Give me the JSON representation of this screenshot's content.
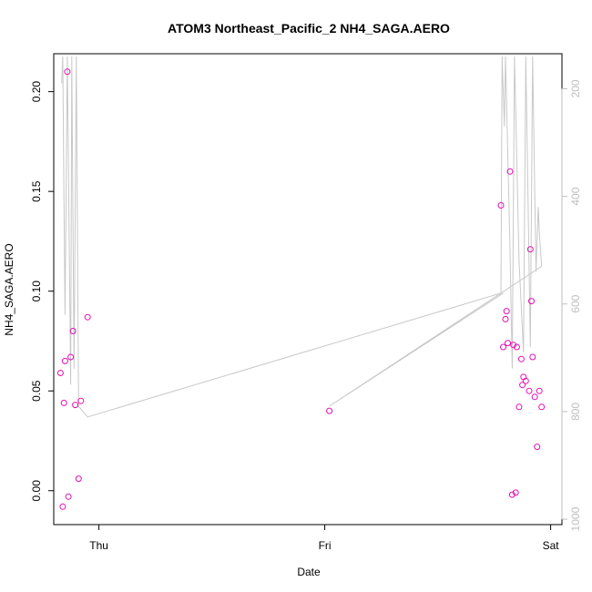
{
  "chart_data": {
    "type": "scatter",
    "title": "ATOM3 Northeast_Pacific_2 NH4_SAGA.AERO",
    "xlabel": "Date",
    "ylabel": "NH4_SAGA.AERO",
    "x_ticks": [
      "Thu",
      "Fri",
      "Sat"
    ],
    "y_ticks": [
      "0.00",
      "0.05",
      "0.10",
      "0.15",
      "0.20"
    ],
    "y2_ticks": [
      "200",
      "400",
      "600",
      "800",
      "1000"
    ],
    "xlim": [
      -0.2,
      2.05
    ],
    "ylim": [
      -0.017,
      0.219
    ],
    "y2lim": [
      1010,
      135
    ],
    "grid": false,
    "legend": "none",
    "colors": {
      "points": "#e60fb4",
      "pressure_line": "#c8c8c8",
      "axis": "#000000",
      "secondary_axis": "#bebebe"
    },
    "series": [
      {
        "values": [
          {
            "x": -0.17,
            "y": 0.059
          },
          {
            "x": -0.16,
            "y": -0.008
          },
          {
            "x": -0.155,
            "y": 0.044
          },
          {
            "x": -0.15,
            "y": 0.065
          },
          {
            "x": -0.14,
            "y": 0.21
          },
          {
            "x": -0.135,
            "y": -0.003
          },
          {
            "x": -0.125,
            "y": 0.067
          },
          {
            "x": -0.115,
            "y": 0.08
          },
          {
            "x": -0.105,
            "y": 0.043
          },
          {
            "x": -0.09,
            "y": 0.006
          },
          {
            "x": -0.08,
            "y": 0.045
          },
          {
            "x": -0.05,
            "y": 0.087
          },
          {
            "x": 1.02,
            "y": 0.04
          },
          {
            "x": 1.78,
            "y": 0.143
          },
          {
            "x": 1.79,
            "y": 0.072
          },
          {
            "x": 1.8,
            "y": 0.086
          },
          {
            "x": 1.805,
            "y": 0.09
          },
          {
            "x": 1.81,
            "y": 0.074
          },
          {
            "x": 1.82,
            "y": 0.16
          },
          {
            "x": 1.83,
            "y": -0.002
          },
          {
            "x": 1.835,
            "y": 0.073
          },
          {
            "x": 1.845,
            "y": -0.001
          },
          {
            "x": 1.85,
            "y": 0.072
          },
          {
            "x": 1.86,
            "y": 0.042
          },
          {
            "x": 1.87,
            "y": 0.066
          },
          {
            "x": 1.875,
            "y": 0.053
          },
          {
            "x": 1.88,
            "y": 0.057
          },
          {
            "x": 1.89,
            "y": 0.055
          },
          {
            "x": 1.905,
            "y": 0.05
          },
          {
            "x": 1.91,
            "y": 0.121
          },
          {
            "x": 1.915,
            "y": 0.095
          },
          {
            "x": 1.92,
            "y": 0.067
          },
          {
            "x": 1.93,
            "y": 0.047
          },
          {
            "x": 1.94,
            "y": 0.022
          },
          {
            "x": 1.95,
            "y": 0.05
          },
          {
            "x": 1.96,
            "y": 0.042
          }
        ]
      }
    ],
    "pressure_profile": [
      {
        "x": -0.165,
        "y2": 190
      },
      {
        "x": -0.16,
        "y2": 140
      },
      {
        "x": -0.155,
        "y2": 400
      },
      {
        "x": -0.15,
        "y2": 620
      },
      {
        "x": -0.14,
        "y2": 140
      },
      {
        "x": -0.125,
        "y2": 750
      },
      {
        "x": -0.12,
        "y2": 140
      },
      {
        "x": -0.11,
        "y2": 720
      },
      {
        "x": -0.1,
        "y2": 140
      },
      {
        "x": -0.09,
        "y2": 790
      },
      {
        "x": -0.05,
        "y2": 810
      },
      {
        "x": 1.78,
        "y2": 580
      },
      {
        "x": 1.785,
        "y2": 140
      },
      {
        "x": 1.795,
        "y2": 270
      },
      {
        "x": 1.8,
        "y2": 140
      },
      {
        "x": 1.82,
        "y2": 500
      },
      {
        "x": 1.83,
        "y2": 720
      },
      {
        "x": 1.84,
        "y2": 140
      },
      {
        "x": 1.86,
        "y2": 520
      },
      {
        "x": 1.88,
        "y2": 690
      },
      {
        "x": 1.89,
        "y2": 140
      },
      {
        "x": 1.91,
        "y2": 680
      },
      {
        "x": 1.92,
        "y2": 140
      },
      {
        "x": 1.935,
        "y2": 540
      },
      {
        "x": 1.945,
        "y2": 420
      },
      {
        "x": 1.95,
        "y2": 470
      },
      {
        "x": 1.96,
        "y2": 530
      },
      {
        "x": 1.02,
        "y2": 790
      },
      {
        "x": 1.79,
        "y2": 580
      }
    ]
  }
}
